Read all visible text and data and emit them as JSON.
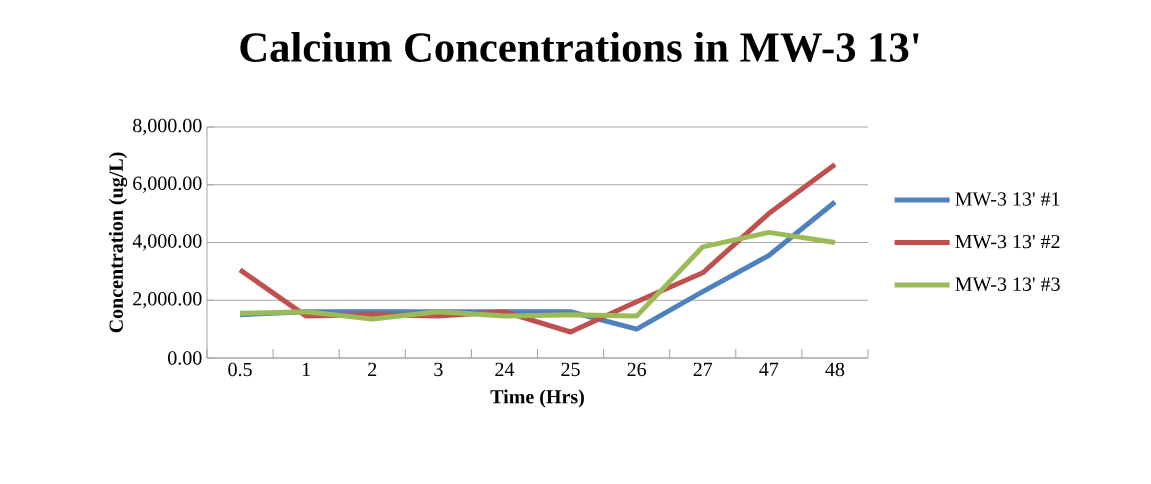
{
  "chart_data": {
    "type": "line",
    "title": "Calcium Concentrations in MW-3 13'",
    "xlabel": "Time (Hrs)",
    "ylabel": "Concentration (ug/L)",
    "categories": [
      "0.5",
      "1",
      "2",
      "3",
      "24",
      "25",
      "26",
      "27",
      "47",
      "48"
    ],
    "series": [
      {
        "name": "MW-3 13' #1",
        "color": "#4f81bd",
        "values": [
          1500,
          1600,
          1600,
          null,
          null,
          1600,
          1000,
          2300,
          3550,
          5400
        ]
      },
      {
        "name": "MW-3 13' #2",
        "color": "#c0504d",
        "values": [
          3050,
          1450,
          1500,
          1450,
          1600,
          900,
          1950,
          2950,
          5000,
          6700
        ]
      },
      {
        "name": "MW-3 13' #3",
        "color": "#9bbb59",
        "values": [
          1550,
          1600,
          1350,
          1600,
          1450,
          1500,
          1450,
          3850,
          4350,
          4000
        ]
      }
    ],
    "ylim": [
      0,
      8000
    ],
    "yticks": [
      {
        "value": 0,
        "label": "0.00"
      },
      {
        "value": 2000,
        "label": "2,000.00"
      },
      {
        "value": 4000,
        "label": "4,000.00"
      },
      {
        "value": 6000,
        "label": "6,000.00"
      },
      {
        "value": 8000,
        "label": "8,000.00"
      }
    ],
    "grid": "y",
    "legend": "right",
    "marker": "none",
    "line_style": "solid"
  }
}
